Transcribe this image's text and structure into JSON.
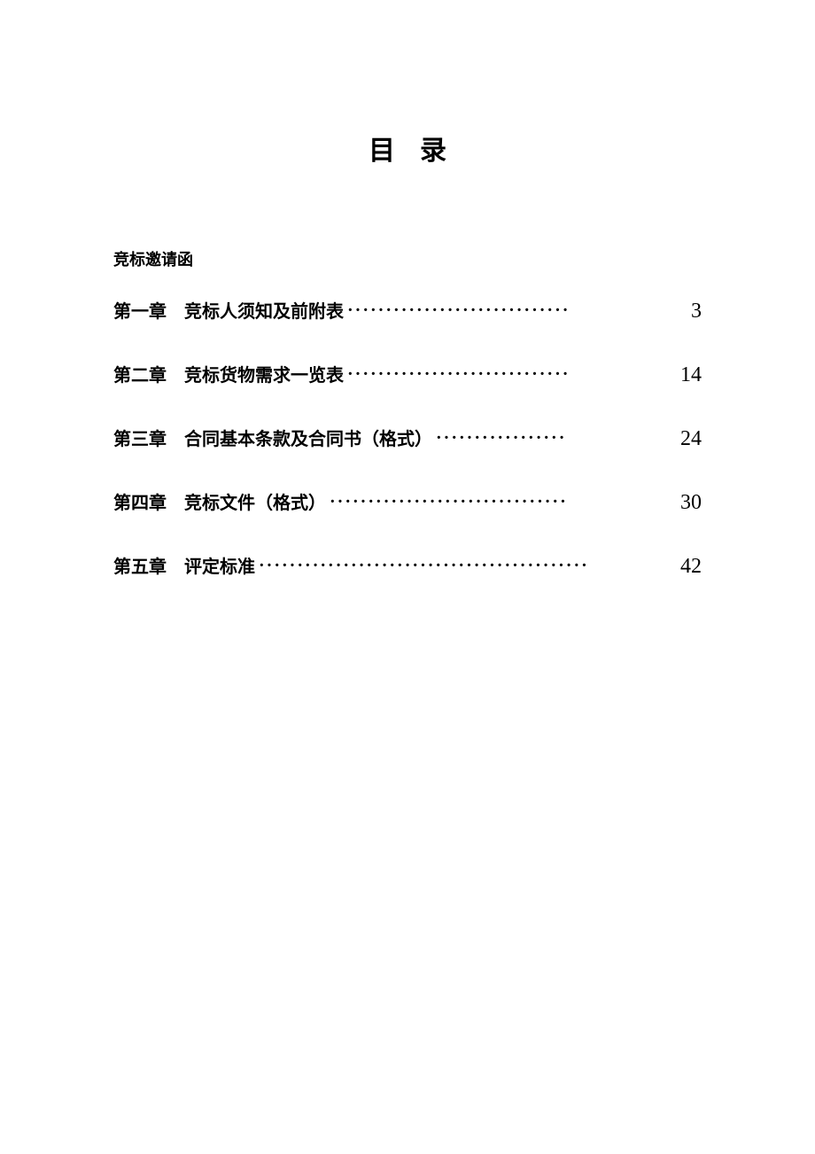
{
  "title": "目录",
  "section_heading": "竞标邀请函",
  "toc": {
    "entries": [
      {
        "chapter": "第一章",
        "title": "竞标人须知及前附表",
        "page": "3"
      },
      {
        "chapter": "第二章",
        "title": "竞标货物需求一览表",
        "page": "14"
      },
      {
        "chapter": "第三章",
        "title": "合同基本条款及合同书（格式）",
        "page": "24"
      },
      {
        "chapter": "第四章",
        "title": "竞标文件（格式）",
        "page": "30"
      },
      {
        "chapter": "第五章",
        "title": "评定标准",
        "page": "42"
      }
    ]
  },
  "style": {
    "background_color": "#ffffff",
    "text_color": "#000000",
    "title_fontsize": 30,
    "heading_fontsize": 18,
    "toc_fontsize": 20,
    "page_number_fontsize": 24,
    "font_family_cjk": "SimSun",
    "font_family_number": "Times New Roman",
    "dot_char": "·"
  }
}
